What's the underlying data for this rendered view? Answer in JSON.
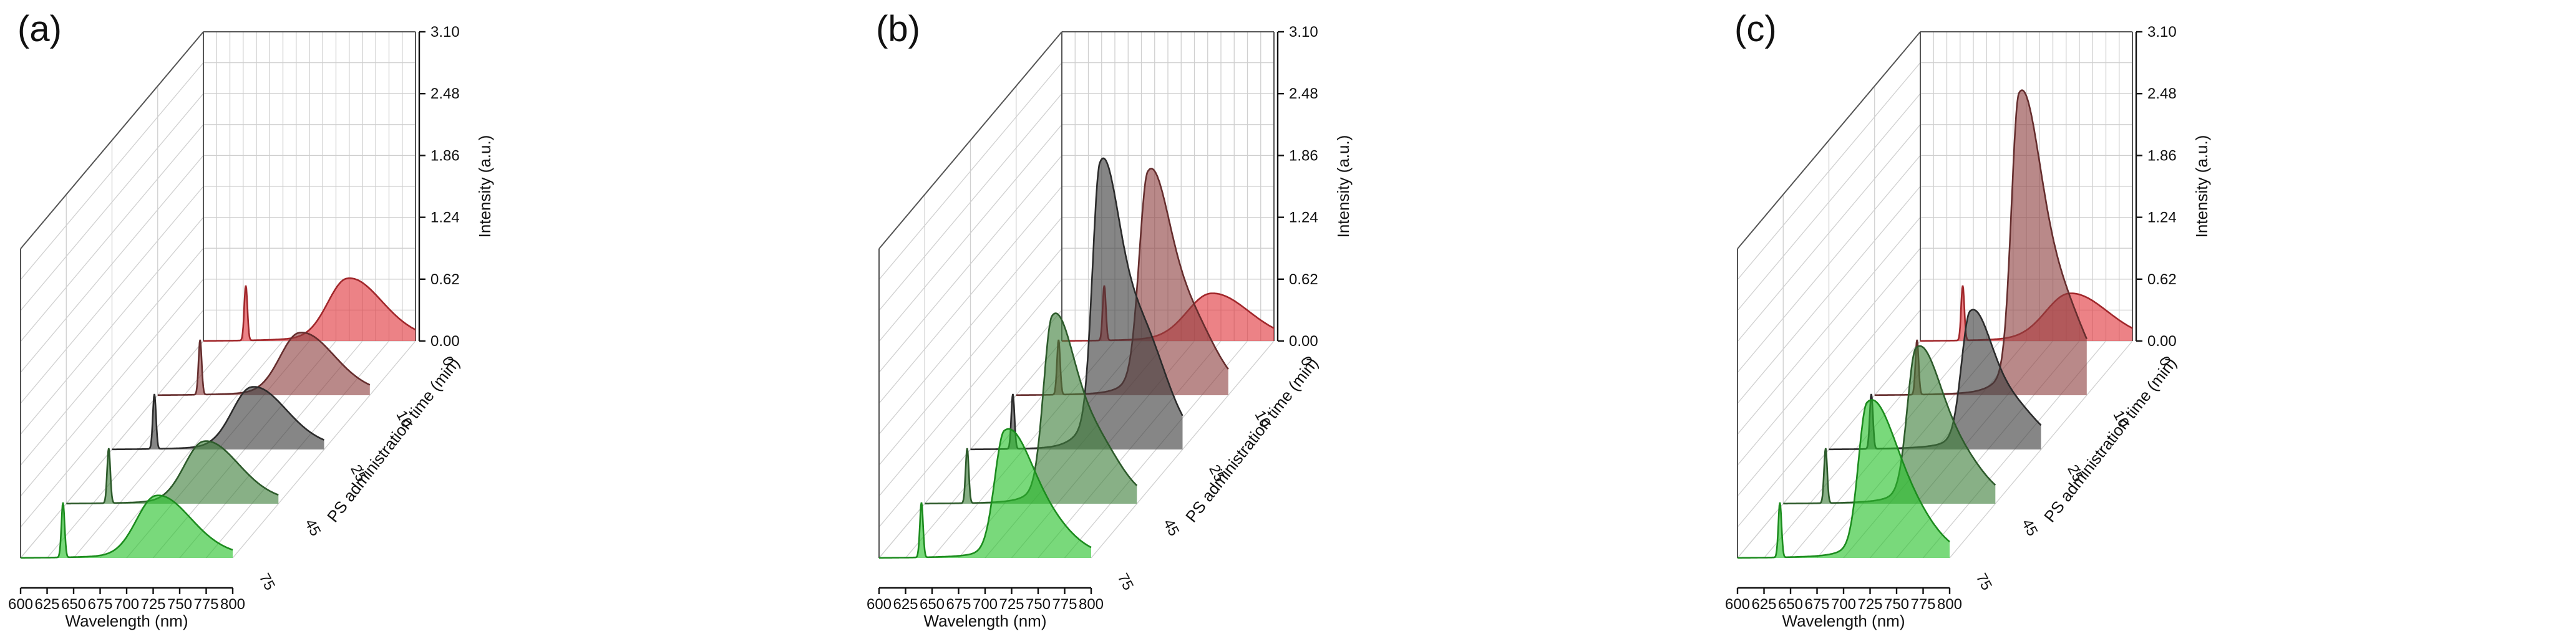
{
  "chart_data": [
    {
      "panel_label": "(a)",
      "type": "area",
      "subtype": "3d-waterfall",
      "xlabel": "Wavelength (nm)",
      "ylabel": "PS administration time (min)",
      "zlabel": "Intensity (a.u.)",
      "x_ticks": [
        "600",
        "625",
        "650",
        "675",
        "700",
        "725",
        "750",
        "775",
        "800"
      ],
      "y_ticks": [
        "0",
        "10",
        "25",
        "45",
        "75"
      ],
      "z_ticks": [
        "0.00",
        "0.62",
        "1.24",
        "1.86",
        "2.48",
        "3.10"
      ],
      "xlim": [
        600,
        800
      ],
      "zlim": [
        0,
        3.1
      ],
      "grid": true,
      "series": [
        {
          "name": "0",
          "color": "#e0363c",
          "laser_peak": 0.55,
          "emission": {
            "center": 735,
            "height": 0.55,
            "width_left": 18,
            "width_right": 28,
            "shoulder": 0.15
          }
        },
        {
          "name": "10",
          "color": "#8e4040",
          "laser_peak": 0.55,
          "emission": {
            "center": 733,
            "height": 0.55,
            "width_left": 18,
            "width_right": 28,
            "shoulder": 0.15
          }
        },
        {
          "name": "25",
          "color": "#3c3c3c",
          "laser_peak": 0.55,
          "emission": {
            "center": 731,
            "height": 0.55,
            "width_left": 18,
            "width_right": 28,
            "shoulder": 0.15
          }
        },
        {
          "name": "45",
          "color": "#3f7f3c",
          "laser_peak": 0.55,
          "emission": {
            "center": 729,
            "height": 0.55,
            "width_left": 18,
            "width_right": 28,
            "shoulder": 0.15
          }
        },
        {
          "name": "75",
          "color": "#27c22a",
          "laser_peak": 0.55,
          "emission": {
            "center": 727,
            "height": 0.55,
            "width_left": 18,
            "width_right": 28,
            "shoulder": 0.15
          }
        }
      ]
    },
    {
      "panel_label": "(b)",
      "type": "area",
      "subtype": "3d-waterfall",
      "xlabel": "Wavelength (nm)",
      "ylabel": "PS administration time (min)",
      "zlabel": "Intensity (a.u.)",
      "x_ticks": [
        "600",
        "625",
        "650",
        "675",
        "700",
        "725",
        "750",
        "775",
        "800"
      ],
      "y_ticks": [
        "0",
        "10",
        "25",
        "45",
        "75"
      ],
      "z_ticks": [
        "0.00",
        "0.62",
        "1.24",
        "1.86",
        "2.48",
        "3.10"
      ],
      "xlim": [
        600,
        800
      ],
      "zlim": [
        0,
        3.1
      ],
      "grid": true,
      "series": [
        {
          "name": "0",
          "color": "#e0363c",
          "laser_peak": 0.55,
          "emission": {
            "center": 740,
            "height": 0.42,
            "width_left": 22,
            "width_right": 32,
            "shoulder": 0.08
          }
        },
        {
          "name": "10",
          "color": "#8e4040",
          "laser_peak": 0.55,
          "emission": {
            "center": 724,
            "height": 1.85,
            "width_left": 8,
            "width_right": 18,
            "shoulder": 0.45
          }
        },
        {
          "name": "25",
          "color": "#3c3c3c",
          "laser_peak": 0.55,
          "emission": {
            "center": 722,
            "height": 2.3,
            "width_left": 7,
            "width_right": 16,
            "shoulder": 0.55
          }
        },
        {
          "name": "45",
          "color": "#3f7f3c",
          "laser_peak": 0.55,
          "emission": {
            "center": 720,
            "height": 1.55,
            "width_left": 8,
            "width_right": 18,
            "shoulder": 0.45
          }
        },
        {
          "name": "75",
          "color": "#27c22a",
          "laser_peak": 0.55,
          "emission": {
            "center": 718,
            "height": 1.08,
            "width_left": 9,
            "width_right": 22,
            "shoulder": 0.35
          }
        }
      ]
    },
    {
      "panel_label": "(c)",
      "type": "area",
      "subtype": "3d-waterfall",
      "xlabel": "Wavelength (nm)",
      "ylabel": "PS administration time (min)",
      "zlabel": "Intensity (a.u.)",
      "x_ticks": [
        "600",
        "625",
        "650",
        "675",
        "700",
        "725",
        "750",
        "775",
        "800"
      ],
      "y_ticks": [
        "0",
        "10",
        "25",
        "45",
        "75"
      ],
      "z_ticks": [
        "0.00",
        "0.62",
        "1.24",
        "1.86",
        "2.48",
        "3.10"
      ],
      "xlim": [
        600,
        800
      ],
      "zlim": [
        0,
        3.1
      ],
      "grid": true,
      "series": [
        {
          "name": "0",
          "color": "#e0363c",
          "laser_peak": 0.55,
          "emission": {
            "center": 740,
            "height": 0.42,
            "width_left": 22,
            "width_right": 32,
            "shoulder": 0.08
          }
        },
        {
          "name": "10",
          "color": "#8e4040",
          "laser_peak": 0.55,
          "emission": {
            "center": 736,
            "height": 2.55,
            "width_left": 7,
            "width_right": 18,
            "shoulder": 0.4
          }
        },
        {
          "name": "25",
          "color": "#3c3c3c",
          "laser_peak": 0.55,
          "emission": {
            "center": 733,
            "height": 1.15,
            "width_left": 8,
            "width_right": 18,
            "shoulder": 0.4
          }
        },
        {
          "name": "45",
          "color": "#3f7f3c",
          "laser_peak": 0.55,
          "emission": {
            "center": 725,
            "height": 1.3,
            "width_left": 8,
            "width_right": 20,
            "shoulder": 0.4
          }
        },
        {
          "name": "75",
          "color": "#27c22a",
          "laser_peak": 0.55,
          "emission": {
            "center": 722,
            "height": 1.3,
            "width_left": 8,
            "width_right": 22,
            "shoulder": 0.4
          }
        }
      ]
    }
  ]
}
